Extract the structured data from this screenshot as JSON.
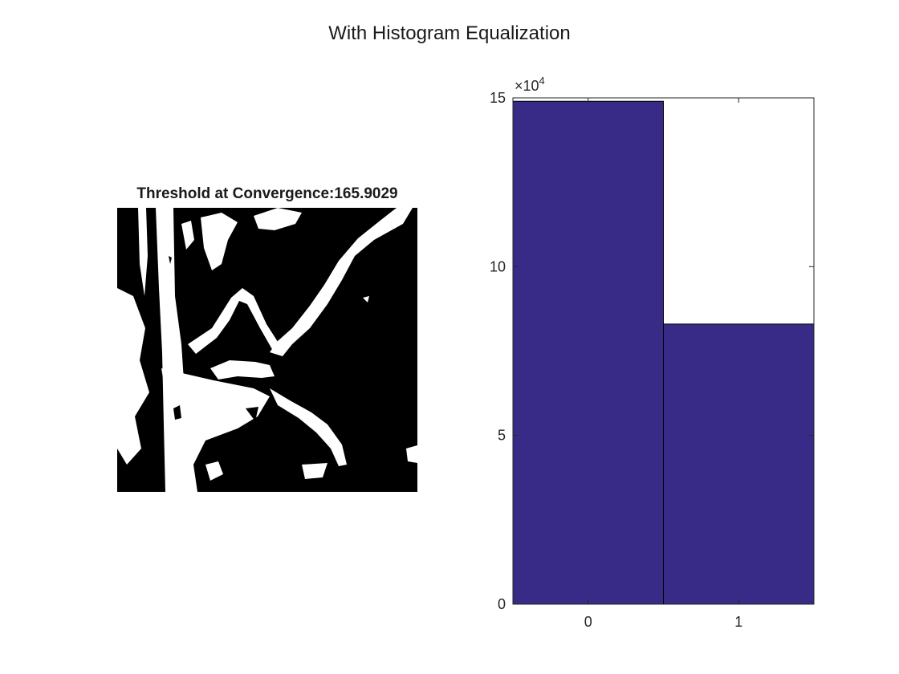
{
  "figure": {
    "suptitle": "With Histogram Equalization"
  },
  "image_panel": {
    "title": "Threshold at Convergence:165.9029"
  },
  "chart_data": {
    "type": "bar",
    "categories": [
      "0",
      "1"
    ],
    "values": [
      149000,
      83000
    ],
    "ylim": [
      0,
      150000
    ],
    "yticks": [
      "0",
      "5",
      "10",
      "15"
    ],
    "y_exponent_label": "×10",
    "y_exponent_power": "4",
    "bar_color": "#372b87",
    "grid": false
  }
}
